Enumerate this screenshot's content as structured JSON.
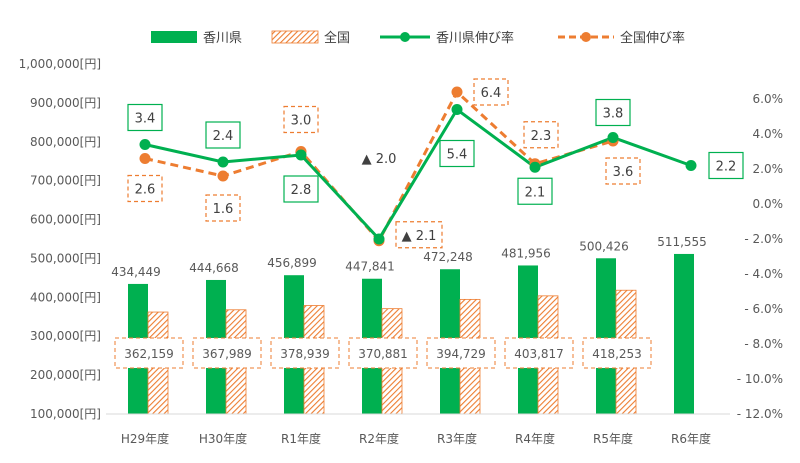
{
  "chart_data": {
    "type": "bar",
    "categories": [
      "H29年度",
      "H30年度",
      "R1年度",
      "R2年度",
      "R3年度",
      "R4年度",
      "R5年度",
      "R6年度"
    ],
    "series": [
      {
        "name": "香川県",
        "kind": "bar",
        "axis": "left",
        "color": "#00b050",
        "values": [
          434449,
          444668,
          456899,
          447841,
          472248,
          481956,
          500426,
          511555
        ],
        "labels": [
          "434,449",
          "444,668",
          "456,899",
          "447,841",
          "472,248",
          "481,956",
          "500,426",
          "511,555"
        ]
      },
      {
        "name": "全国",
        "kind": "bar-hatched",
        "axis": "left",
        "color": "#ed7d31",
        "values": [
          362159,
          367989,
          378939,
          370881,
          394729,
          403817,
          418253,
          null
        ],
        "labels": [
          "362,159",
          "367,989",
          "378,939",
          "370,881",
          "394,729",
          "403,817",
          "418,253",
          null
        ]
      },
      {
        "name": "香川県伸び率",
        "kind": "line",
        "axis": "right",
        "color": "#00b050",
        "values": [
          3.4,
          2.4,
          2.8,
          -2.0,
          5.4,
          2.1,
          3.8,
          2.2
        ],
        "labels": [
          "3.4",
          "2.4",
          "2.8",
          "▲ 2.0",
          "5.4",
          "2.1",
          "3.8",
          "2.2"
        ]
      },
      {
        "name": "全国伸び率",
        "kind": "line-dashed",
        "axis": "right",
        "color": "#ed7d31",
        "values": [
          2.6,
          1.6,
          3.0,
          -2.1,
          6.4,
          2.3,
          3.6,
          null
        ],
        "labels": [
          "2.6",
          "1.6",
          "3.0",
          "▲ 2.1",
          "6.4",
          "2.3",
          "3.6",
          null
        ]
      }
    ],
    "y_left": {
      "range": [
        100000,
        1000000
      ],
      "ticks": [
        1000000,
        900000,
        800000,
        700000,
        600000,
        500000,
        400000,
        300000,
        200000,
        100000
      ],
      "tick_labels": [
        "1,000,000[円]",
        "900,000[円]",
        "800,000[円]",
        "700,000[円]",
        "600,000[円]",
        "500,000[円]",
        "400,000[円]",
        "300,000[円]",
        "200,000[円]",
        "100,000[円]"
      ]
    },
    "y_right": {
      "range": [
        -12.0,
        8.0
      ],
      "ticks": [
        6,
        4,
        2,
        0,
        -2,
        -4,
        -6,
        -8,
        -10,
        -12
      ],
      "tick_labels": [
        "6.0%",
        "4.0%",
        "2.0%",
        "0.0%",
        "- 2.0%",
        "- 4.0%",
        "- 6.0%",
        "- 8.0%",
        "- 10.0%",
        "- 12.0%"
      ]
    },
    "legend": {
      "position": "top",
      "items": [
        "香川県",
        "全国",
        "香川県伸び率",
        "全国伸び率"
      ]
    },
    "grid": false
  }
}
